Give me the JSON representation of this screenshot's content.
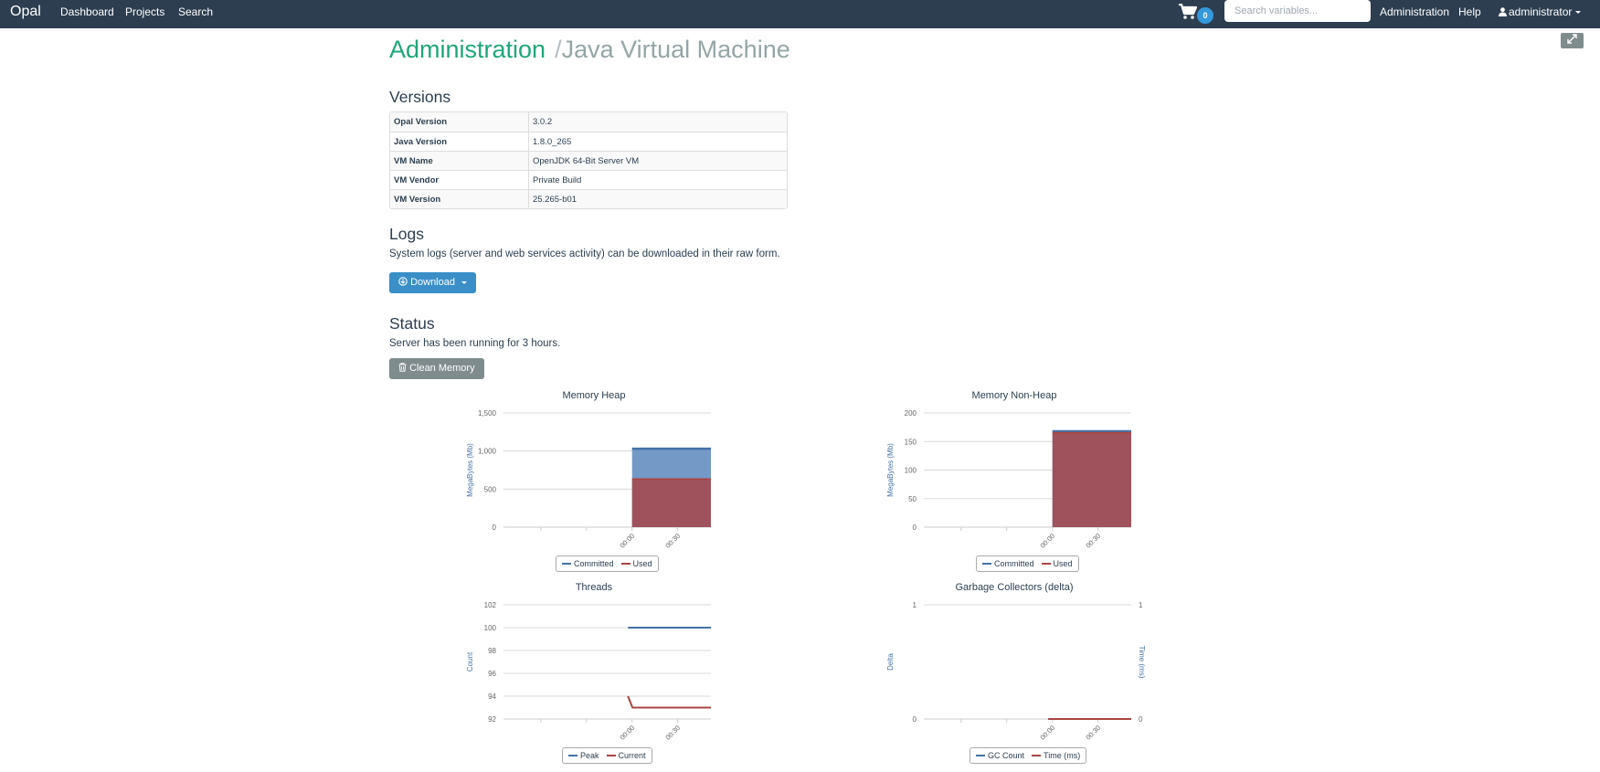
{
  "nav": {
    "brand": "Opal",
    "links": [
      "Dashboard",
      "Projects",
      "Search"
    ],
    "cart_count": "0",
    "search_placeholder": "Search variables...",
    "admin": "Administration",
    "help": "Help",
    "user": "administrator"
  },
  "page": {
    "title": "Administration",
    "separator": "/",
    "subtitle": "Java Virtual Machine"
  },
  "versions": {
    "heading": "Versions",
    "rows": [
      {
        "key": "Opal Version",
        "value": "3.0.2"
      },
      {
        "key": "Java Version",
        "value": "1.8.0_265"
      },
      {
        "key": "VM Name",
        "value": "OpenJDK 64-Bit Server VM"
      },
      {
        "key": "VM Vendor",
        "value": "Private Build"
      },
      {
        "key": "VM Version",
        "value": "25.265-b01"
      }
    ]
  },
  "logs": {
    "heading": "Logs",
    "description": "System logs (server and web services activity) can be downloaded in their raw form.",
    "download_label": "Download"
  },
  "status": {
    "heading": "Status",
    "description": "Server has been running for 3 hours.",
    "clean_label": "Clean Memory"
  },
  "colors": {
    "committed": "#7399c6",
    "used": "#a0525c",
    "blue_line": "#4572a7",
    "red_line": "#aa4643"
  },
  "chart_data": [
    {
      "type": "area",
      "title": "Memory Heap",
      "ylabel": "MegaBytes (Mb)",
      "y_ticks": [
        "1,500",
        "1,000",
        "500",
        "0"
      ],
      "ylim": [
        0,
        1500
      ],
      "x_ticks": [
        "00:00",
        "00:30"
      ],
      "series": [
        {
          "name": "Committed",
          "values": [
            1030,
            1030
          ]
        },
        {
          "name": "Used",
          "values": [
            630,
            630
          ]
        }
      ]
    },
    {
      "type": "area",
      "title": "Memory Non-Heap",
      "ylabel": "MegaBytes (Mb)",
      "y_ticks": [
        "200",
        "150",
        "100",
        "50",
        "0"
      ],
      "ylim": [
        0,
        200
      ],
      "x_ticks": [
        "00:00",
        "00:30"
      ],
      "series": [
        {
          "name": "Committed",
          "values": [
            168,
            168
          ]
        },
        {
          "name": "Used",
          "values": [
            165,
            165
          ]
        }
      ]
    },
    {
      "type": "line",
      "title": "Threads",
      "ylabel": "Count",
      "y_ticks": [
        "102",
        "100",
        "98",
        "96",
        "94",
        "92"
      ],
      "ylim": [
        92,
        102
      ],
      "x_ticks": [
        "00:00",
        "00:30"
      ],
      "series": [
        {
          "name": "Peak",
          "values": [
            100,
            100,
            100
          ]
        },
        {
          "name": "Current",
          "values": [
            94,
            93,
            93
          ]
        }
      ]
    },
    {
      "type": "line",
      "title": "Garbage Collectors (delta)",
      "ylabel": "Delta",
      "ylabel_right": "Time (ms)",
      "y_ticks": [
        "1",
        "0"
      ],
      "y_ticks_right": [
        "1",
        "0"
      ],
      "ylim": [
        0,
        1
      ],
      "x_ticks": [
        "00:00",
        "00:30"
      ],
      "series": [
        {
          "name": "GC Count",
          "values": [
            0,
            0
          ]
        },
        {
          "name": "Time (ms)",
          "values": [
            0,
            0
          ]
        }
      ]
    }
  ]
}
